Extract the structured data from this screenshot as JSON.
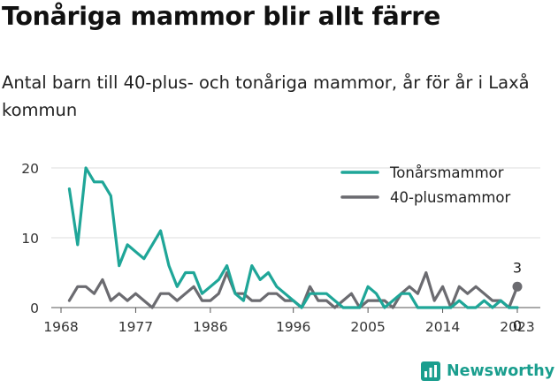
{
  "title": "Tonåriga mammor blir allt färre",
  "subtitle": "Antal barn till 40-plus- och tonåriga mammor, år för år i Laxå kommun",
  "brand": {
    "name": "Newsworthy",
    "color": "#1a9e8e"
  },
  "chart_data": {
    "type": "line",
    "x": [
      1969,
      1970,
      1971,
      1972,
      1973,
      1974,
      1975,
      1976,
      1977,
      1978,
      1979,
      1980,
      1981,
      1982,
      1983,
      1984,
      1985,
      1986,
      1987,
      1988,
      1989,
      1990,
      1991,
      1992,
      1993,
      1994,
      1995,
      1996,
      1997,
      1998,
      1999,
      2000,
      2001,
      2002,
      2003,
      2004,
      2005,
      2006,
      2007,
      2008,
      2009,
      2010,
      2011,
      2012,
      2013,
      2014,
      2015,
      2016,
      2017,
      2018,
      2019,
      2020,
      2021,
      2022,
      2023
    ],
    "series": [
      {
        "name": "Tonårsmammor",
        "color": "#1fa698",
        "values": [
          17,
          9,
          20,
          18,
          18,
          16,
          6,
          9,
          8,
          7,
          9,
          11,
          6,
          3,
          5,
          5,
          2,
          3,
          4,
          6,
          2,
          1,
          6,
          4,
          5,
          3,
          2,
          1,
          0,
          2,
          2,
          2,
          1,
          0,
          0,
          0,
          3,
          2,
          0,
          1,
          2,
          2,
          0,
          0,
          0,
          0,
          0,
          1,
          0,
          0,
          1,
          0,
          1,
          0,
          0
        ]
      },
      {
        "name": "40-plusmammor",
        "color": "#6b6b70",
        "values": [
          1,
          3,
          3,
          2,
          4,
          1,
          2,
          1,
          2,
          1,
          0,
          2,
          2,
          1,
          2,
          3,
          1,
          1,
          2,
          5,
          2,
          2,
          1,
          1,
          2,
          2,
          1,
          1,
          0,
          3,
          1,
          1,
          0,
          1,
          2,
          0,
          1,
          1,
          1,
          0,
          2,
          3,
          2,
          5,
          1,
          3,
          0,
          3,
          2,
          3,
          2,
          1,
          1,
          0,
          3
        ]
      }
    ],
    "xticks": [
      "1968",
      "1977",
      "1986",
      "1996",
      "2005",
      "2014",
      "2023"
    ],
    "yticks": [
      "0",
      "10",
      "20"
    ],
    "ylim": [
      0,
      21
    ],
    "end_labels": {
      "40-plusmammor": "3",
      "Tonårsmammor": "0"
    },
    "grid": "horizontal",
    "legend": "top-right"
  }
}
